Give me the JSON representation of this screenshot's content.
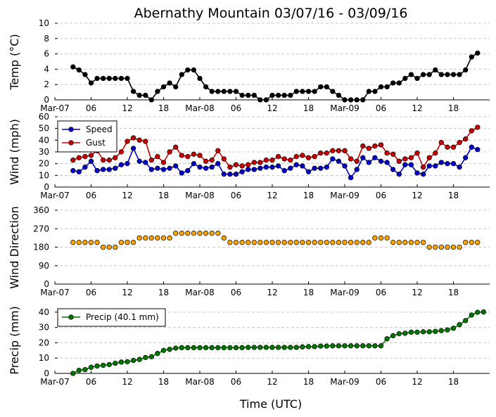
{
  "chart_data": {
    "type": "line",
    "title": "Abernathy Mountain 03/07/16 - 03/09/16",
    "xlabel": "Time (UTC)",
    "x_units": "hours since 2016-03-07 00:00 UTC",
    "xlim": [
      0,
      72
    ],
    "x_start": 3,
    "x_step": 1,
    "x_ticks": [
      {
        "t": 0,
        "label": "Mar-07"
      },
      {
        "t": 6,
        "label": "06"
      },
      {
        "t": 12,
        "label": "12"
      },
      {
        "t": 18,
        "label": "18"
      },
      {
        "t": 24,
        "label": "Mar-08"
      },
      {
        "t": 30,
        "label": "06"
      },
      {
        "t": 36,
        "label": "12"
      },
      {
        "t": 42,
        "label": "18"
      },
      {
        "t": 48,
        "label": "Mar-09"
      },
      {
        "t": 54,
        "label": "06"
      },
      {
        "t": 60,
        "label": "12"
      },
      {
        "t": 66,
        "label": "18"
      }
    ],
    "panels": [
      {
        "id": "temp",
        "ylabel": "Temp (°C)",
        "ylim": [
          0,
          10
        ],
        "yticks": [
          0,
          2,
          4,
          6,
          8,
          10
        ],
        "legend": null,
        "series": [
          {
            "name": "Temp",
            "color": "#000000",
            "values": [
              4.3,
              3.9,
              3.3,
              2.2,
              2.8,
              2.8,
              2.8,
              2.8,
              2.8,
              2.8,
              1.1,
              0.6,
              0.6,
              0,
              1.1,
              1.7,
              2.2,
              1.7,
              3.3,
              3.9,
              3.9,
              2.8,
              1.7,
              1.1,
              1.1,
              1.1,
              1.1,
              1.1,
              0.6,
              0.6,
              0.6,
              0,
              0,
              0.6,
              0.6,
              0.6,
              0.6,
              1.1,
              1.1,
              1.1,
              1.1,
              1.7,
              1.7,
              1.1,
              0.6,
              0,
              0,
              0,
              0,
              1.1,
              1.1,
              1.7,
              1.7,
              2.2,
              2.2,
              2.8,
              3.3,
              2.8,
              3.3,
              3.3,
              3.9,
              3.3,
              3.3,
              3.3,
              3.3,
              3.9,
              5.6,
              6.1
            ]
          }
        ]
      },
      {
        "id": "wind",
        "ylabel": "Wind (mph)",
        "ylim": [
          0,
          60
        ],
        "yticks": [
          0,
          10,
          20,
          30,
          40,
          50,
          60
        ],
        "legend": "upper-left",
        "series": [
          {
            "name": "Speed",
            "color": "#0000cc",
            "values": [
              14,
              13,
              17,
              22,
              14,
              15,
              15,
              16,
              19,
              20,
              33,
              22,
              21,
              15,
              16,
              15,
              16,
              18,
              12,
              14,
              20,
              17,
              16,
              17,
              20,
              11,
              11,
              11,
              13,
              15,
              15,
              16,
              17,
              17,
              18,
              14,
              16,
              19,
              18,
              13,
              16,
              16,
              17,
              24,
              22,
              18,
              8,
              15,
              25,
              21,
              25,
              22,
              21,
              15,
              11,
              19,
              19,
              12,
              11,
              18,
              18,
              21,
              20,
              20,
              17,
              25,
              34,
              32
            ]
          },
          {
            "name": "Gust",
            "color": "#cc0000",
            "values": [
              23,
              25,
              26,
              27,
              31,
              23,
              23,
              25,
              30,
              39,
              42,
              40,
              39,
              23,
              26,
              21,
              30,
              34,
              27,
              26,
              28,
              27,
              22,
              23,
              31,
              24,
              17,
              19,
              18,
              19,
              21,
              21,
              23,
              23,
              26,
              24,
              23,
              26,
              27,
              25,
              26,
              29,
              29,
              31,
              31,
              31,
              24,
              22,
              35,
              33,
              35,
              36,
              29,
              28,
              22,
              24,
              25,
              29,
              17,
              25,
              29,
              38,
              34,
              34,
              38,
              41,
              48,
              51
            ]
          }
        ]
      },
      {
        "id": "direction",
        "ylabel": "Wind Direction",
        "ylim": [
          0,
          360
        ],
        "yticks": [
          0,
          90,
          180,
          270,
          360
        ],
        "legend": null,
        "series": [
          {
            "name": "Direction",
            "color": "#ffa500",
            "line": false,
            "values": [
              203,
              203,
              203,
              203,
              203,
              180,
              180,
              180,
              203,
              203,
              203,
              225,
              225,
              225,
              225,
              225,
              225,
              248,
              248,
              248,
              248,
              248,
              248,
              248,
              248,
              225,
              203,
              203,
              203,
              203,
              203,
              203,
              203,
              203,
              203,
              203,
              203,
              203,
              203,
              203,
              203,
              203,
              203,
              203,
              203,
              203,
              203,
              203,
              203,
              203,
              225,
              225,
              225,
              203,
              203,
              203,
              203,
              203,
              203,
              180,
              180,
              180,
              180,
              180,
              180,
              203,
              203,
              203
            ]
          }
        ]
      },
      {
        "id": "precip",
        "ylabel": "Precip (mm)",
        "ylim": [
          0,
          45
        ],
        "yticks": [
          0,
          10,
          20,
          30,
          40
        ],
        "legend": "upper-left",
        "series": [
          {
            "name": "Precip (40.1 mm)",
            "color": "#007700",
            "values": [
              0,
              2,
              2.5,
              4,
              4.8,
              5.3,
              5.8,
              6.6,
              7.4,
              7.6,
              8.4,
              9.1,
              10.4,
              10.9,
              13,
              15,
              15.7,
              16.5,
              16.8,
              16.8,
              16.8,
              16.8,
              16.8,
              16.8,
              16.8,
              16.8,
              16.8,
              16.8,
              16.8,
              17,
              17,
              17,
              17,
              17,
              17,
              17,
              17,
              17,
              17.3,
              17.5,
              17.5,
              17.8,
              17.8,
              18,
              18,
              18,
              18,
              18,
              18,
              18,
              18,
              18,
              22.6,
              24.6,
              25.9,
              26.2,
              26.9,
              26.9,
              27.2,
              27.2,
              27.4,
              27.9,
              28.4,
              29.5,
              31.8,
              34.5,
              38.1,
              39.9,
              40.1
            ]
          }
        ]
      }
    ]
  }
}
